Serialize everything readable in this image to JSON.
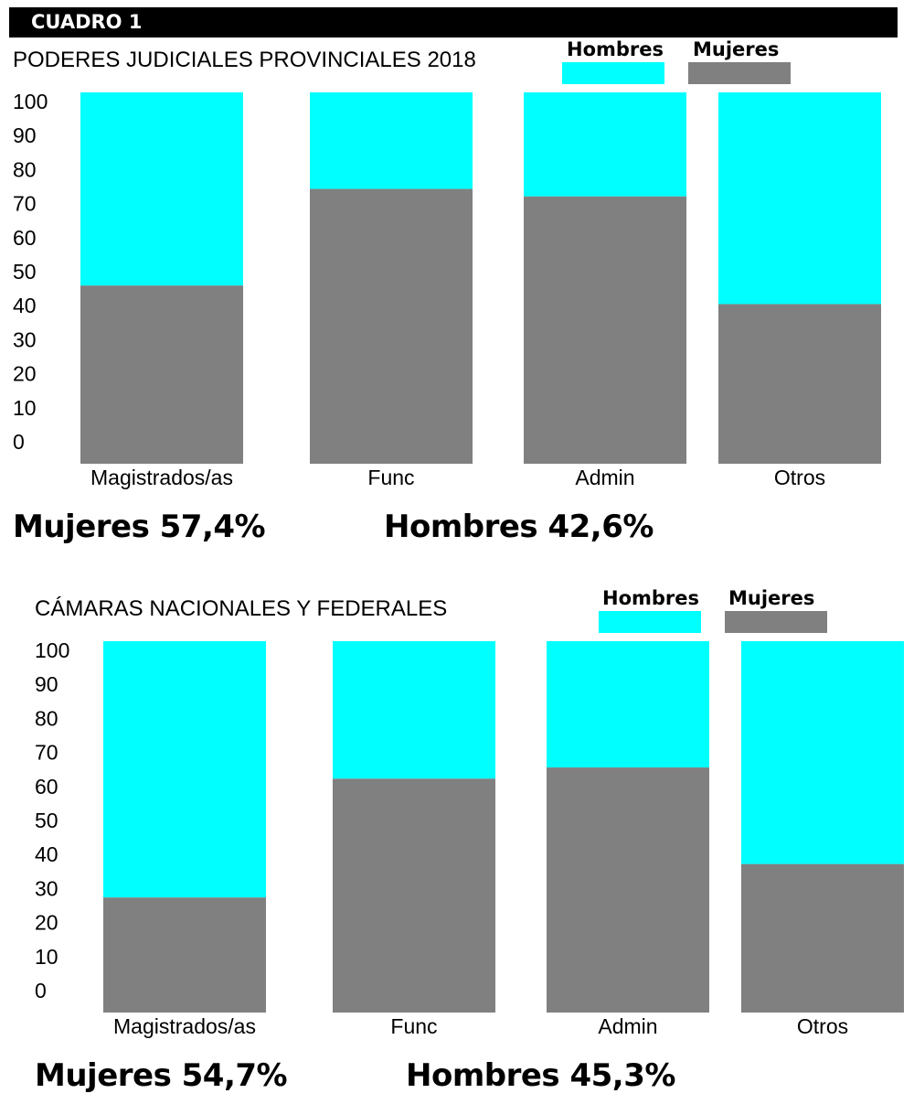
{
  "header": {
    "label": "CUADRO 1"
  },
  "colors": {
    "hombres": "#00FFFF",
    "mujeres": "#808080"
  },
  "charts": [
    {
      "title": "PODERES JUDICIALES PROVINCIALES 2018",
      "legend": {
        "hombres": "Hombres",
        "mujeres": "Mujeres"
      },
      "summary": {
        "mujeres": "Mujeres 57,4%",
        "hombres": "Hombres 42,6%"
      }
    },
    {
      "title": "CÁMARAS NACIONALES Y FEDERALES",
      "legend": {
        "hombres": "Hombres",
        "mujeres": "Mujeres"
      },
      "summary": {
        "mujeres": "Mujeres 54,7%",
        "hombres": "Hombres 45,3%"
      }
    }
  ],
  "chart_data": [
    {
      "type": "bar",
      "stacked": true,
      "title": "PODERES JUDICIALES PROVINCIALES 2018",
      "categories": [
        "Magistrados/as",
        "Func",
        "Admin",
        "Otros"
      ],
      "series": [
        {
          "name": "Mujeres",
          "values": [
            48,
            74,
            72,
            43
          ]
        },
        {
          "name": "Hombres",
          "values": [
            52,
            26,
            28,
            57
          ]
        }
      ],
      "yticks": [
        "0",
        "10",
        "20",
        "30",
        "40",
        "50",
        "60",
        "70",
        "80",
        "90",
        "100"
      ],
      "ylim": [
        0,
        100
      ],
      "grid": false,
      "legend_position": "top-right"
    },
    {
      "type": "bar",
      "stacked": true,
      "title": "CÁMARAS NACIONALES Y FEDERALES",
      "categories": [
        "Magistrados/as",
        "Func",
        "Admin",
        "Otros"
      ],
      "series": [
        {
          "name": "Mujeres",
          "values": [
            31,
            63,
            66,
            40
          ]
        },
        {
          "name": "Hombres",
          "values": [
            69,
            37,
            34,
            60
          ]
        }
      ],
      "yticks": [
        "0",
        "10",
        "20",
        "30",
        "40",
        "50",
        "60",
        "70",
        "80",
        "90",
        "100"
      ],
      "ylim": [
        0,
        100
      ],
      "grid": false,
      "legend_position": "top-right"
    }
  ]
}
